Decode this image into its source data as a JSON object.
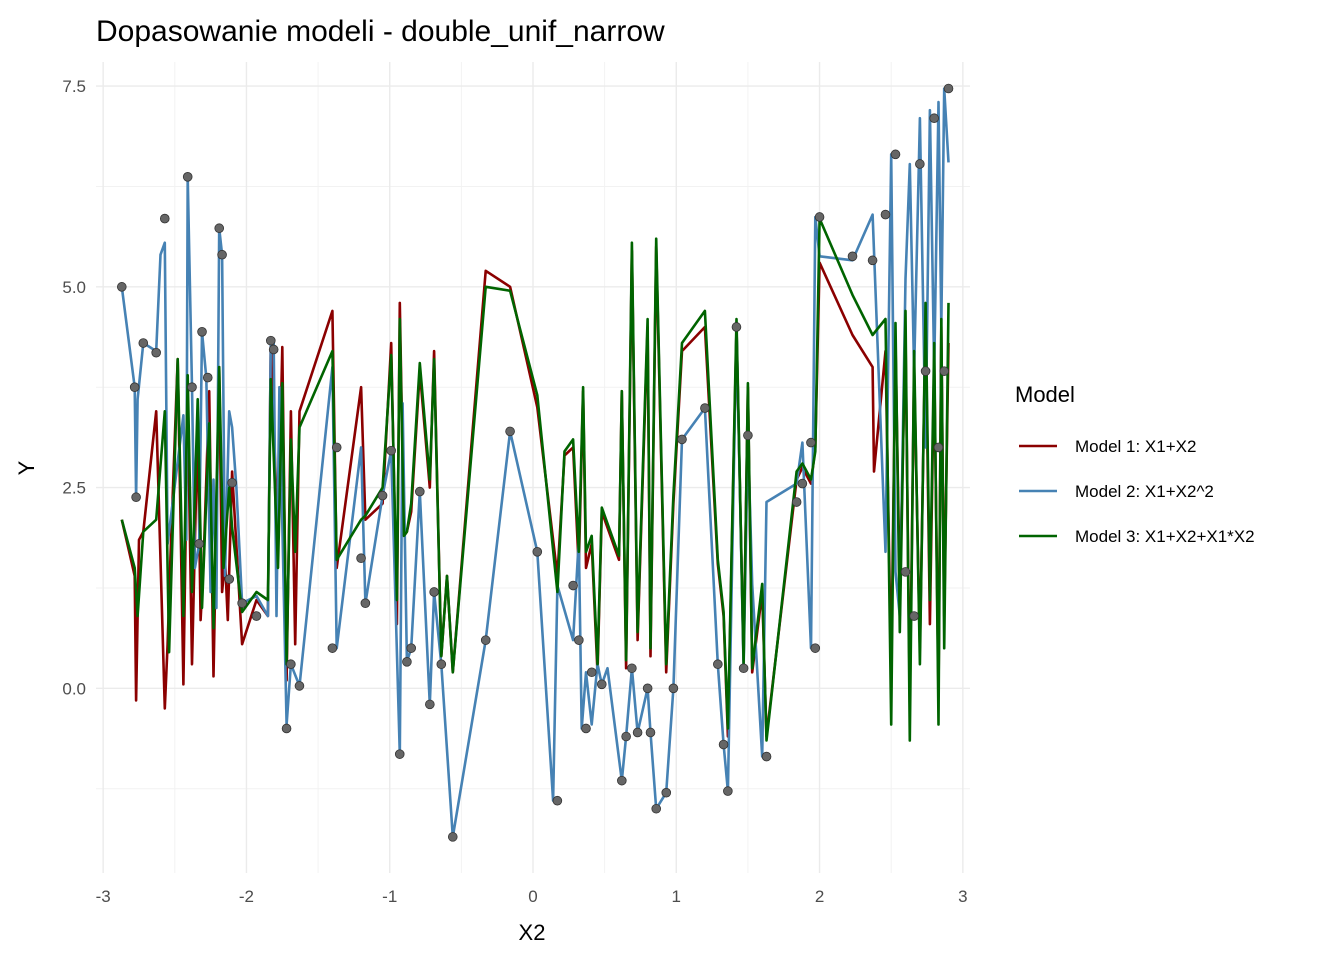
{
  "chart_data": {
    "type": "line",
    "title": "Dopasowanie modeli - double_unif_narrow",
    "xlabel": "X2",
    "ylabel": "Y",
    "xlim": [
      -3.05,
      3.05
    ],
    "ylim": [
      -2.3,
      7.8
    ],
    "x_ticks": [
      -3,
      -2,
      -1,
      0,
      1,
      2,
      3
    ],
    "x_tick_labels": [
      "-3",
      "-2",
      "-1",
      "0",
      "1",
      "2",
      "3"
    ],
    "y_ticks": [
      0,
      2.5,
      5,
      7.5
    ],
    "y_tick_labels": [
      "0.0",
      "2.5",
      "5.0",
      "7.5"
    ],
    "grid": true,
    "legend": {
      "title": "Model",
      "position": "right",
      "entries": [
        {
          "label": "Model 1: X1+X2",
          "color": "#8b0000"
        },
        {
          "label": "Model 2: X1+X2^2",
          "color": "#4682b4"
        },
        {
          "label": "Model 3: X1+X2+X1*X2",
          "color": "#006400"
        }
      ]
    },
    "points_color": "#666666",
    "points": {
      "x": [
        -2.87,
        -2.78,
        -2.77,
        -2.72,
        -2.63,
        -2.57,
        -2.41,
        -2.38,
        -2.33,
        -2.31,
        -2.27,
        -2.19,
        -2.17,
        -2.12,
        -2.1,
        -2.03,
        -1.93,
        -1.83,
        -1.81,
        -1.72,
        -1.69,
        -1.63,
        -1.4,
        -1.37,
        -1.2,
        -1.17,
        -1.05,
        -0.99,
        -0.93,
        -0.88,
        -0.85,
        -0.79,
        -0.72,
        -0.69,
        -0.64,
        -0.56,
        -0.33,
        -0.16,
        0.03,
        0.17,
        0.28,
        0.32,
        0.37,
        0.41,
        0.48,
        0.62,
        0.65,
        0.69,
        0.73,
        0.8,
        0.82,
        0.86,
        0.93,
        0.98,
        1.04,
        1.2,
        1.29,
        1.33,
        1.36,
        1.42,
        1.47,
        1.5,
        1.63,
        1.84,
        1.88,
        1.94,
        1.97,
        2.0,
        2.23,
        2.37,
        2.46,
        2.53,
        2.6,
        2.66,
        2.7,
        2.74,
        2.8,
        2.83,
        2.87,
        2.9
      ],
      "y": [
        5.0,
        3.75,
        2.38,
        4.3,
        4.18,
        5.85,
        6.37,
        3.75,
        1.8,
        4.44,
        3.87,
        5.73,
        5.4,
        1.36,
        2.56,
        1.06,
        0.9,
        4.33,
        4.22,
        -0.5,
        0.3,
        0.03,
        0.5,
        3.0,
        1.62,
        1.06,
        2.4,
        2.96,
        -0.82,
        0.33,
        0.5,
        2.45,
        -0.2,
        1.2,
        0.3,
        -1.85,
        0.6,
        3.2,
        1.7,
        -1.4,
        1.28,
        0.6,
        -0.5,
        0.2,
        0.05,
        -1.15,
        -0.6,
        0.25,
        -0.55,
        0.0,
        -0.55,
        -1.5,
        -1.3,
        -0.0,
        3.1,
        3.49,
        0.3,
        -0.7,
        -1.28,
        4.5,
        0.25,
        3.15,
        -0.85,
        2.32,
        2.55,
        3.06,
        0.5,
        5.87,
        5.38,
        5.33,
        5.9,
        6.65,
        1.45,
        0.9,
        6.53,
        3.95,
        7.1,
        3.0,
        3.95,
        7.47
      ]
    },
    "series": [
      {
        "name": "Model 1: X1+X2",
        "color": "#8b0000",
        "x": [
          -2.87,
          -2.78,
          -2.77,
          -2.75,
          -2.72,
          -2.63,
          -2.57,
          -2.55,
          -2.53,
          -2.48,
          -2.44,
          -2.41,
          -2.38,
          -2.34,
          -2.32,
          -2.3,
          -2.26,
          -2.23,
          -2.19,
          -2.17,
          -2.15,
          -2.13,
          -2.1,
          -2.03,
          -1.93,
          -1.85,
          -1.83,
          -1.78,
          -1.75,
          -1.72,
          -1.69,
          -1.66,
          -1.63,
          -1.4,
          -1.37,
          -1.2,
          -1.17,
          -1.05,
          -0.99,
          -0.95,
          -0.93,
          -0.9,
          -0.88,
          -0.85,
          -0.79,
          -0.72,
          -0.69,
          -0.64,
          -0.6,
          -0.56,
          -0.33,
          -0.16,
          0.03,
          0.17,
          0.22,
          0.28,
          0.32,
          0.35,
          0.37,
          0.41,
          0.45,
          0.48,
          0.6,
          0.62,
          0.65,
          0.69,
          0.73,
          0.8,
          0.82,
          0.86,
          0.93,
          0.98,
          1.04,
          1.2,
          1.29,
          1.33,
          1.36,
          1.42,
          1.47,
          1.5,
          1.53,
          1.6,
          1.63,
          1.84,
          1.88,
          1.94,
          1.97,
          2.0,
          2.23,
          2.37,
          2.38,
          2.46,
          2.5,
          2.53,
          2.56,
          2.6,
          2.63,
          2.66,
          2.7,
          2.74,
          2.77,
          2.8,
          2.83,
          2.85,
          2.87,
          2.9
        ],
        "y": [
          2.1,
          1.4,
          -0.15,
          1.85,
          1.95,
          3.45,
          -0.25,
          0.55,
          1.65,
          4.1,
          0.05,
          3.6,
          0.3,
          3.3,
          0.85,
          1.55,
          3.7,
          0.15,
          4.0,
          1.2,
          1.6,
          0.85,
          2.7,
          0.55,
          1.1,
          0.9,
          4.3,
          1.8,
          4.25,
          0.1,
          3.45,
          0.55,
          3.45,
          4.7,
          1.5,
          3.75,
          2.1,
          2.3,
          4.3,
          0.8,
          4.8,
          1.9,
          1.95,
          2.2,
          3.95,
          2.5,
          4.2,
          0.4,
          1.4,
          0.2,
          5.2,
          5.0,
          3.5,
          1.4,
          2.9,
          3.0,
          1.5,
          3.7,
          1.5,
          1.8,
          0.2,
          2.2,
          1.6,
          3.7,
          0.25,
          5.45,
          0.6,
          4.5,
          0.4,
          5.5,
          0.2,
          2.3,
          4.2,
          4.5,
          1.55,
          0.9,
          -0.6,
          4.5,
          0.35,
          3.75,
          0.2,
          1.2,
          -0.6,
          2.6,
          2.75,
          2.55,
          3.0,
          5.3,
          4.4,
          4.0,
          2.7,
          4.2,
          0.2,
          4.3,
          1.2,
          4.4,
          -0.2,
          4.0,
          0.5,
          4.6,
          0.8,
          4.1,
          -0.1,
          4.5,
          0.9,
          4.3
        ]
      },
      {
        "name": "Model 2: X1+X2^2",
        "color": "#4682b4",
        "x": [
          -2.87,
          -2.78,
          -2.77,
          -2.76,
          -2.72,
          -2.63,
          -2.6,
          -2.57,
          -2.55,
          -2.44,
          -2.42,
          -2.41,
          -2.38,
          -2.36,
          -2.33,
          -2.31,
          -2.28,
          -2.25,
          -2.23,
          -2.21,
          -2.19,
          -2.17,
          -2.15,
          -2.12,
          -2.1,
          -2.07,
          -2.03,
          -1.93,
          -1.85,
          -1.83,
          -1.81,
          -1.79,
          -1.77,
          -1.72,
          -1.69,
          -1.63,
          -1.4,
          -1.37,
          -1.2,
          -1.17,
          -1.05,
          -0.99,
          -0.93,
          -0.91,
          -0.88,
          -0.85,
          -0.79,
          -0.72,
          -0.69,
          -0.64,
          -0.56,
          -0.33,
          -0.16,
          0.03,
          0.14,
          0.17,
          0.28,
          0.32,
          0.34,
          0.37,
          0.41,
          0.45,
          0.48,
          0.52,
          0.62,
          0.65,
          0.69,
          0.73,
          0.8,
          0.82,
          0.86,
          0.93,
          0.98,
          1.04,
          1.2,
          1.29,
          1.33,
          1.36,
          1.42,
          1.47,
          1.5,
          1.53,
          1.6,
          1.63,
          1.84,
          1.88,
          1.94,
          1.97,
          2.0,
          2.23,
          2.37,
          2.46,
          2.5,
          2.53,
          2.56,
          2.6,
          2.63,
          2.66,
          2.7,
          2.74,
          2.77,
          2.8,
          2.83,
          2.85,
          2.87,
          2.9
        ],
        "y": [
          5.0,
          3.75,
          2.38,
          3.6,
          4.3,
          4.2,
          5.4,
          5.55,
          1.8,
          3.4,
          1.85,
          6.37,
          3.75,
          1.5,
          1.8,
          4.44,
          3.87,
          1.2,
          2.6,
          1.0,
          5.73,
          5.4,
          1.4,
          3.45,
          3.25,
          2.5,
          1.06,
          1.15,
          0.9,
          4.33,
          4.3,
          0.9,
          3.75,
          -0.45,
          0.3,
          0.03,
          4.0,
          0.5,
          3.0,
          1.06,
          2.4,
          2.96,
          -0.82,
          3.55,
          0.33,
          0.5,
          2.45,
          -0.2,
          1.2,
          0.3,
          -1.85,
          0.6,
          3.2,
          1.7,
          -1.4,
          1.28,
          0.6,
          1.85,
          -0.5,
          0.2,
          -0.45,
          0.3,
          0.05,
          0.25,
          -1.15,
          -0.6,
          0.25,
          -0.55,
          0.0,
          -0.55,
          -1.5,
          -1.3,
          -0.0,
          3.1,
          3.49,
          0.3,
          -0.7,
          -1.28,
          4.5,
          0.25,
          3.15,
          1.3,
          -0.85,
          2.32,
          2.55,
          3.06,
          0.5,
          5.87,
          5.38,
          5.33,
          5.9,
          1.7,
          6.65,
          1.45,
          0.9,
          5.1,
          6.53,
          3.95,
          7.1,
          3.0,
          7.2,
          3.95,
          7.3,
          4.5,
          7.47,
          6.55
        ]
      },
      {
        "name": "Model 3: X1+X2+X1*X2",
        "color": "#006400",
        "x": [
          -2.87,
          -2.78,
          -2.76,
          -2.72,
          -2.63,
          -2.57,
          -2.54,
          -2.48,
          -2.44,
          -2.41,
          -2.38,
          -2.34,
          -2.31,
          -2.26,
          -2.23,
          -2.19,
          -2.16,
          -2.12,
          -2.1,
          -2.03,
          -1.93,
          -1.85,
          -1.83,
          -1.78,
          -1.75,
          -1.72,
          -1.69,
          -1.66,
          -1.63,
          -1.4,
          -1.37,
          -1.2,
          -1.17,
          -1.05,
          -0.99,
          -0.95,
          -0.93,
          -0.9,
          -0.88,
          -0.85,
          -0.79,
          -0.72,
          -0.69,
          -0.64,
          -0.6,
          -0.56,
          -0.33,
          -0.16,
          0.03,
          0.17,
          0.22,
          0.28,
          0.32,
          0.35,
          0.37,
          0.41,
          0.45,
          0.48,
          0.6,
          0.62,
          0.65,
          0.69,
          0.73,
          0.8,
          0.82,
          0.86,
          0.93,
          0.98,
          1.04,
          1.2,
          1.29,
          1.33,
          1.36,
          1.42,
          1.47,
          1.5,
          1.53,
          1.6,
          1.63,
          1.84,
          1.88,
          1.94,
          1.97,
          2.0,
          2.23,
          2.37,
          2.46,
          2.5,
          2.53,
          2.56,
          2.6,
          2.63,
          2.66,
          2.7,
          2.74,
          2.77,
          2.8,
          2.83,
          2.85,
          2.87,
          2.9
        ],
        "y": [
          2.1,
          1.5,
          0.9,
          1.95,
          2.1,
          3.45,
          0.45,
          4.1,
          0.9,
          3.9,
          1.2,
          3.6,
          1.0,
          3.3,
          0.75,
          4.0,
          1.5,
          2.5,
          2.0,
          0.95,
          1.2,
          1.1,
          3.85,
          1.5,
          3.8,
          0.3,
          3.1,
          1.7,
          3.25,
          4.2,
          1.6,
          2.1,
          2.15,
          2.5,
          4.15,
          1.1,
          4.6,
          1.9,
          1.95,
          2.3,
          4.05,
          2.6,
          4.1,
          0.4,
          1.4,
          0.2,
          5.0,
          4.95,
          3.65,
          1.2,
          2.95,
          3.1,
          1.7,
          3.75,
          1.7,
          1.9,
          0.3,
          2.25,
          1.65,
          3.7,
          0.35,
          5.55,
          0.7,
          4.6,
          0.5,
          5.6,
          0.3,
          2.4,
          4.3,
          4.7,
          1.6,
          0.95,
          -0.5,
          4.6,
          0.3,
          3.8,
          0.25,
          1.3,
          -0.65,
          2.7,
          2.8,
          2.6,
          2.95,
          5.85,
          4.9,
          4.4,
          4.6,
          -0.45,
          4.55,
          0.7,
          4.7,
          -0.65,
          4.2,
          0.3,
          4.8,
          1.1,
          4.3,
          -0.45,
          4.6,
          0.5,
          4.8
        ]
      }
    ]
  }
}
